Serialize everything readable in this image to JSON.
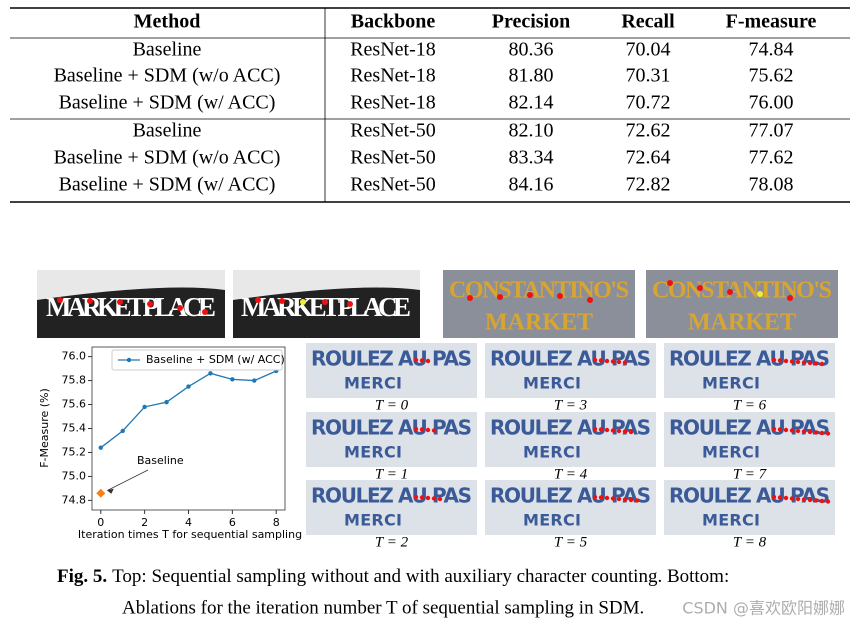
{
  "table": {
    "headers": [
      "Method",
      "Backbone",
      "Precision",
      "Recall",
      "F-measure"
    ],
    "rows": [
      [
        "Baseline",
        "ResNet-18",
        "80.36",
        "70.04",
        "74.84"
      ],
      [
        "Baseline + SDM (w/o ACC)",
        "ResNet-18",
        "81.80",
        "70.31",
        "75.62"
      ],
      [
        "Baseline + SDM (w/ ACC)",
        "ResNet-18",
        "82.14",
        "70.72",
        "76.00"
      ],
      [
        "Baseline",
        "ResNet-50",
        "82.10",
        "72.62",
        "77.07"
      ],
      [
        "Baseline + SDM (w/o ACC)",
        "ResNet-50",
        "83.34",
        "72.64",
        "77.62"
      ],
      [
        "Baseline + SDM (w/ ACC)",
        "ResNet-50",
        "84.16",
        "72.82",
        "78.08"
      ]
    ]
  },
  "signs": {
    "market": "MARKET PLACE",
    "constantino": "CONSTANTINO'S",
    "constantino_market": "MARKET",
    "roulez": "ROULEZ AU PAS",
    "merci": "MERCI"
  },
  "grid_labels": [
    "T = 0",
    "T = 1",
    "T = 2",
    "T = 3",
    "T = 4",
    "T = 5",
    "T = 6",
    "T = 7",
    "T = 8"
  ],
  "chart_data": {
    "type": "line",
    "x": [
      0,
      1,
      2,
      3,
      4,
      5,
      6,
      7,
      8
    ],
    "series": [
      {
        "name": "Baseline + SDM (w/ ACC)",
        "color": "#1f77b4",
        "values": [
          75.24,
          75.38,
          75.58,
          75.62,
          75.75,
          75.86,
          75.81,
          75.8,
          75.88
        ]
      }
    ],
    "baseline": {
      "label": "Baseline",
      "x": 0,
      "value": 74.86,
      "color": "#ff7f0e"
    },
    "xlabel": "Iteration times T for sequential sampling",
    "ylabel": "F-Measure (%)",
    "xlim": [
      -0.4,
      8.4
    ],
    "ylim": [
      74.72,
      76.08
    ],
    "xticks": [
      0,
      2,
      4,
      6,
      8
    ],
    "yticks": [
      74.8,
      {
        "value": 75,
        "label": "75.0"
      },
      75.2,
      75.4,
      75.6,
      75.8,
      {
        "value": 76,
        "label": "76.0"
      }
    ],
    "legend": "upper center",
    "grid": false
  },
  "caption": {
    "label": "Fig. 5.",
    "line_1": "Top: Sequential sampling without and with auxiliary character counting. Bottom:",
    "line_2": "Ablations for the iteration number T of sequential sampling in SDM."
  },
  "watermark": "CSDN @喜欢欧阳娜娜"
}
